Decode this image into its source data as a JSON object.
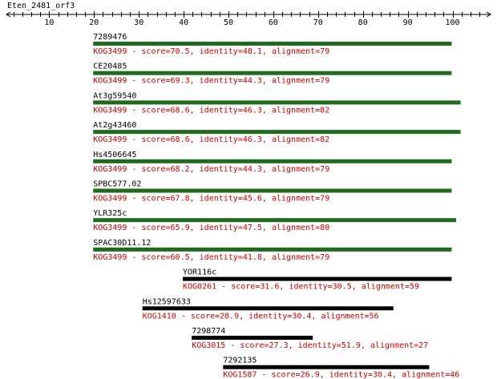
{
  "query": {
    "name": "Eten_2481_orf3",
    "ruler_min": 0,
    "ruler_max": 108,
    "ticks": [
      10,
      20,
      30,
      40,
      50,
      60,
      70,
      80,
      90,
      100
    ]
  },
  "colors": {
    "ruler": "#000000",
    "kog_bar_green": "#1e6b1e",
    "kog_bar_black": "#000000",
    "desc_text": "#cc0000"
  },
  "hits": [
    {
      "name": "7289476",
      "kog": "KOG3499",
      "score": "70.5",
      "identity": "48.1",
      "alignment": "79",
      "start": 19,
      "end": 99,
      "bar": "green",
      "description": "KOG3499 - score=70.5, identity=48.1, alignment=79"
    },
    {
      "name": "CE20485",
      "kog": "KOG3499",
      "score": "69.3",
      "identity": "44.3",
      "alignment": "79",
      "start": 19,
      "end": 99,
      "bar": "green",
      "description": "KOG3499 - score=69.3, identity=44.3, alignment=79"
    },
    {
      "name": "At3g59540",
      "kog": "KOG3499",
      "score": "68.6",
      "identity": "46.3",
      "alignment": "82",
      "start": 19,
      "end": 101,
      "bar": "green",
      "description": "KOG3499 - score=68.6, identity=46.3, alignment=82"
    },
    {
      "name": "At2g43460",
      "kog": "KOG3499",
      "score": "68.6",
      "identity": "46.3",
      "alignment": "82",
      "start": 19,
      "end": 101,
      "bar": "green",
      "description": "KOG3499 - score=68.6, identity=46.3, alignment=82"
    },
    {
      "name": "Hs4506645",
      "kog": "KOG3499",
      "score": "68.2",
      "identity": "44.3",
      "alignment": "79",
      "start": 19,
      "end": 99,
      "bar": "green",
      "description": "KOG3499 - score=68.2, identity=44.3, alignment=79"
    },
    {
      "name": "SPBC577.02",
      "kog": "KOG3499",
      "score": "67.8",
      "identity": "45.6",
      "alignment": "79",
      "start": 19,
      "end": 99,
      "bar": "green",
      "description": "KOG3499 - score=67.8, identity=45.6, alignment=79"
    },
    {
      "name": "YLR325c",
      "kog": "KOG3499",
      "score": "65.9",
      "identity": "47.5",
      "alignment": "80",
      "start": 19,
      "end": 100,
      "bar": "green",
      "description": "KOG3499 - score=65.9, identity=47.5, alignment=80"
    },
    {
      "name": "SPAC30D11.12",
      "kog": "KOG3499",
      "score": "60.5",
      "identity": "41.8",
      "alignment": "79",
      "start": 19,
      "end": 99,
      "bar": "green",
      "description": "KOG3499 - score=60.5, identity=41.8, alignment=79"
    },
    {
      "name": "YOR116c",
      "kog": "KOG0261",
      "score": "31.6",
      "identity": "30.5",
      "alignment": "59",
      "start": 39,
      "end": 99,
      "bar": "black",
      "description": "KOG0261 - score=31.6, identity=30.5, alignment=59"
    },
    {
      "name": "Hs12597633",
      "kog": "KOG1410",
      "score": "28.9",
      "identity": "30.4",
      "alignment": "56",
      "start": 30,
      "end": 86,
      "bar": "black",
      "description": "KOG1410 - score=28.9, identity=30.4, alignment=56"
    },
    {
      "name": "7298774",
      "kog": "KOG3015",
      "score": "27.3",
      "identity": "51.9",
      "alignment": "27",
      "start": 41,
      "end": 68,
      "bar": "black",
      "description": "KOG3015 - score=27.3, identity=51.9, alignment=27"
    },
    {
      "name": "7292135",
      "kog": "KOG1587",
      "score": "26.9",
      "identity": "30.4",
      "alignment": "46",
      "start": 48,
      "end": 94,
      "bar": "black",
      "description": "KOG1587 - score=26.9, identity=30.4, alignment=46"
    }
  ]
}
